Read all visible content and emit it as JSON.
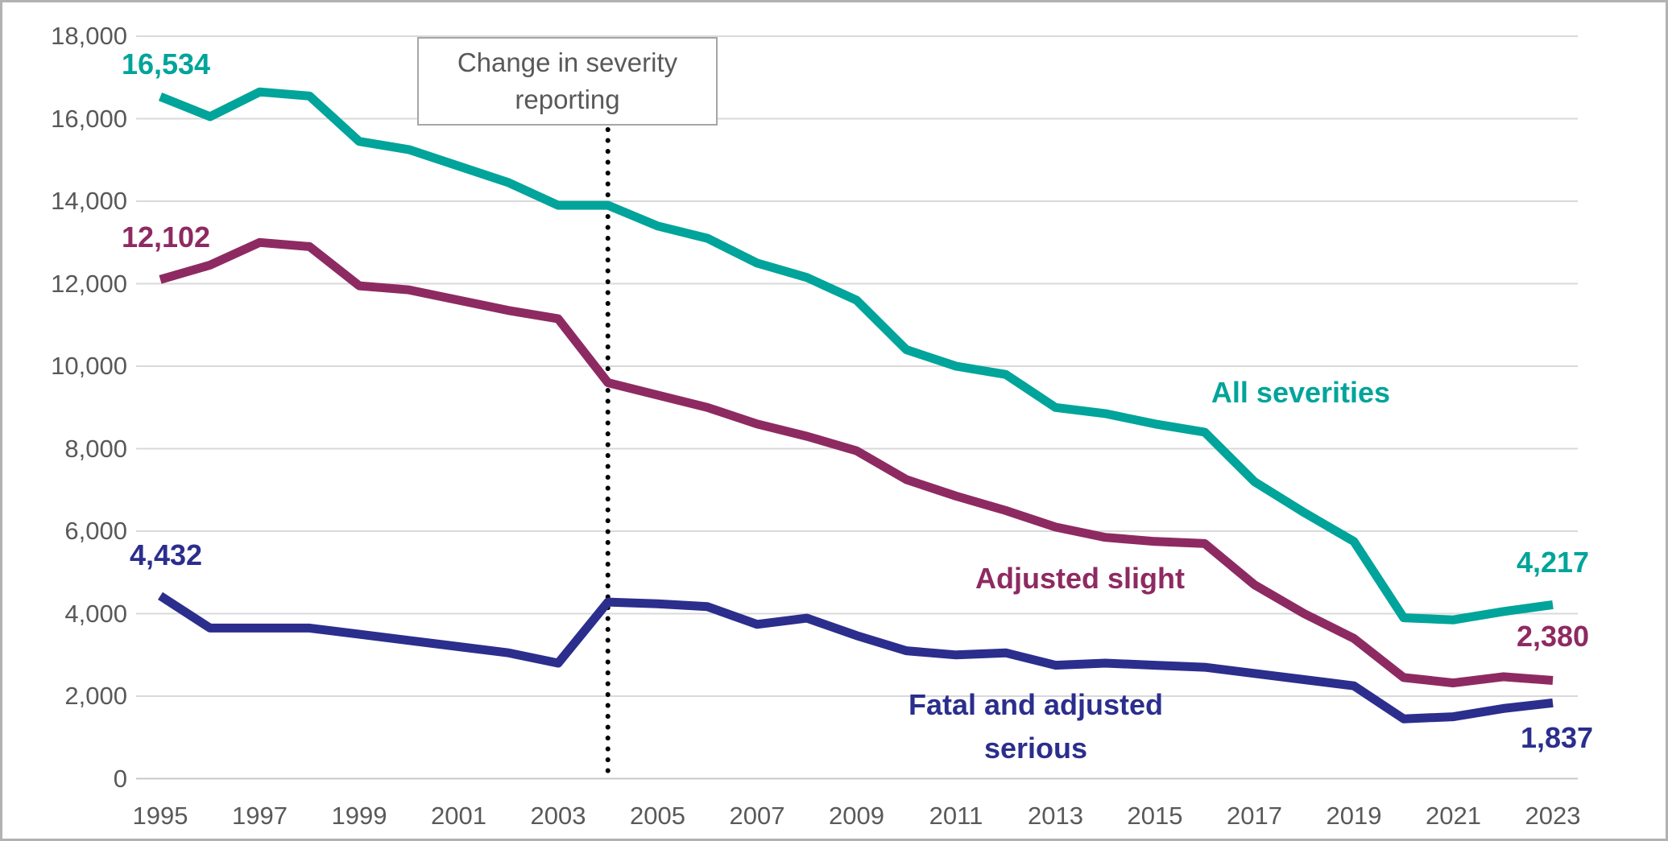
{
  "chart_data": {
    "type": "line",
    "title": "",
    "xlabel": "",
    "ylabel": "",
    "ylim": [
      0,
      18000
    ],
    "grid": true,
    "legend_position": "inline-labels",
    "x": [
      1995,
      1996,
      1997,
      1998,
      1999,
      2000,
      2001,
      2002,
      2003,
      2004,
      2005,
      2006,
      2007,
      2008,
      2009,
      2010,
      2011,
      2012,
      2013,
      2014,
      2015,
      2016,
      2017,
      2018,
      2019,
      2020,
      2021,
      2022,
      2023
    ],
    "y_ticks": [
      "18,000",
      "16,000",
      "14,000",
      "12,000",
      "10,000",
      "8,000",
      "6,000",
      "4,000",
      "2,000",
      "0"
    ],
    "x_ticks": [
      "1995",
      "1997",
      "1999",
      "2001",
      "2003",
      "2005",
      "2007",
      "2009",
      "2011",
      "2013",
      "2015",
      "2017",
      "2019",
      "2021",
      "2023"
    ],
    "series": [
      {
        "name": "All severities",
        "color": "#00a49a",
        "start_label": "16,534",
        "end_label": "4,217",
        "values": [
          16534,
          16050,
          16650,
          16550,
          15450,
          15250,
          14850,
          14450,
          13900,
          13900,
          13400,
          13100,
          12500,
          12150,
          11600,
          10400,
          10000,
          9800,
          9000,
          8850,
          8600,
          8400,
          7200,
          6450,
          5750,
          3900,
          3850,
          4050,
          4217
        ]
      },
      {
        "name": "Adjusted slight",
        "color": "#8e2a62",
        "start_label": "12,102",
        "end_label": "2,380",
        "values": [
          12102,
          12450,
          13000,
          12900,
          11950,
          11850,
          11600,
          11350,
          11150,
          9600,
          9300,
          9000,
          8600,
          8300,
          7950,
          7250,
          6850,
          6500,
          6100,
          5850,
          5750,
          5700,
          4700,
          4000,
          3400,
          2450,
          2320,
          2470,
          2380
        ]
      },
      {
        "name": "Fatal and adjusted serious",
        "color": "#2b2e8c",
        "start_label": "4,432",
        "end_label": "1,837",
        "values": [
          4432,
          3650,
          3650,
          3650,
          3500,
          3350,
          3200,
          3050,
          2800,
          4280,
          4240,
          4170,
          3740,
          3890,
          3470,
          3100,
          3000,
          3050,
          2750,
          2800,
          2750,
          2700,
          2550,
          2400,
          2250,
          1450,
          1500,
          1700,
          1837
        ]
      }
    ],
    "annotation": {
      "line1": "Change in severity",
      "line2": "reporting",
      "year": 2004,
      "marker": "vertical-dotted-line",
      "marker_color": "#000000"
    },
    "colors": {
      "gridline": "#d9d9d9",
      "zero_line": "#c8c8c8",
      "tick_text": "#595959",
      "annotation_text": "#595959",
      "annotation_border": "#a6a6a6",
      "frame_border": "#b2b2b2"
    }
  }
}
